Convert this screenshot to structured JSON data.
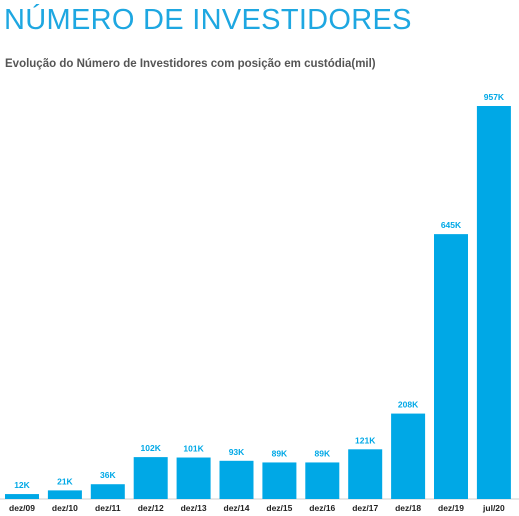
{
  "header": {
    "title": "NÚMERO DE INVESTIDORES",
    "subtitle": "Evolução do Número de Investidores com posição em custódia(mil)"
  },
  "colors": {
    "bar": "#00a8e6",
    "title": "#1ea7e1",
    "label": "#00a8e6",
    "axis": "#cfcfcf"
  },
  "chart_data": {
    "type": "bar",
    "title": "Evolução do Número de Investidores com posição em custódia(mil)",
    "xlabel": "",
    "ylabel": "",
    "categories": [
      "dez/09",
      "dez/10",
      "dez/11",
      "dez/12",
      "dez/13",
      "dez/14",
      "dez/15",
      "dez/16",
      "dez/17",
      "dez/18",
      "dez/19",
      "jul/20"
    ],
    "values": [
      12,
      21,
      36,
      102,
      101,
      93,
      89,
      89,
      121,
      208,
      645,
      957
    ],
    "labels": [
      "12K",
      "21K",
      "36K",
      "102K",
      "101K",
      "93K",
      "89K",
      "89K",
      "121K",
      "208K",
      "645K",
      "957K"
    ],
    "ylim": [
      0,
      957
    ],
    "grid": false,
    "legend": "none"
  }
}
